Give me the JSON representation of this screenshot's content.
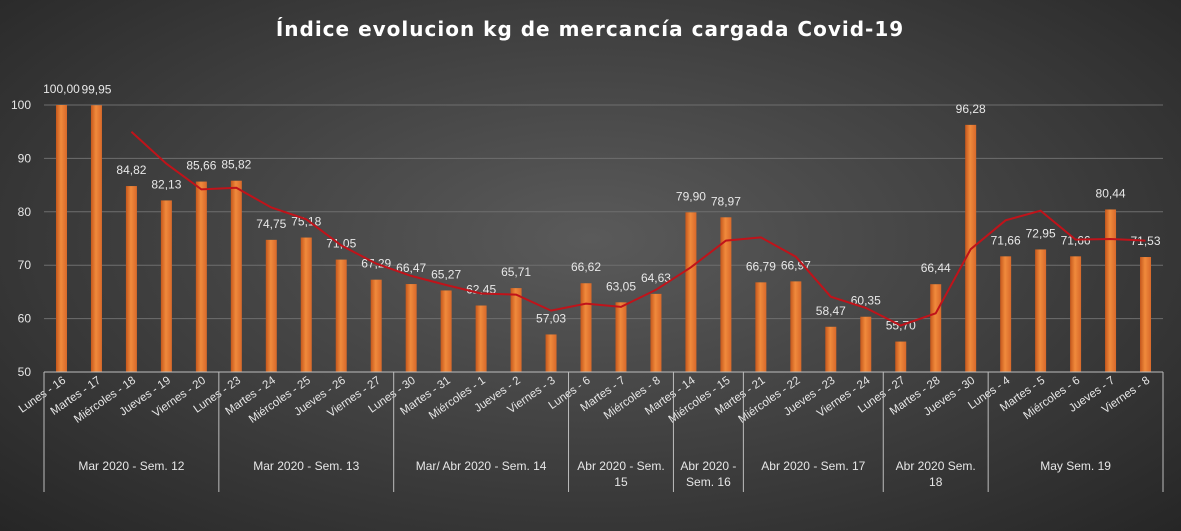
{
  "chart_data": {
    "type": "bar",
    "title": "Índice evolucion kg de mercancía cargada Covid-19",
    "ylim": [
      50,
      100
    ],
    "yticks": [
      50,
      60,
      70,
      80,
      90,
      100
    ],
    "grid": true,
    "bar_color": "#f08a3c",
    "trend_color": "#c0131a",
    "categories": [
      "Lunes - 16",
      "Martes - 17",
      "Miércoles - 18",
      "Jueves - 19",
      "Viernes - 20",
      "Lunes - 23",
      "Martes - 24",
      "Miércoles - 25",
      "Jueves - 26",
      "Viernes - 27",
      "Lunes - 30",
      "Martes - 31",
      "Miércoles - 1",
      "Jueves - 2",
      "Viernes - 3",
      "Lunes - 6",
      "Martes - 7",
      "Miércoles - 8",
      "Martes - 14",
      "Miércoles - 15",
      "Martes - 21",
      "Miércoles - 22",
      "Jueves - 23",
      "Viernes - 24",
      "Lunes - 27",
      "Martes - 28",
      "Jueves - 30",
      "Lunes - 4",
      "Martes - 5",
      "Miércoles - 6",
      "Jueves - 7",
      "Viernes - 8"
    ],
    "values": [
      100.0,
      99.95,
      84.82,
      82.13,
      85.66,
      85.82,
      74.75,
      75.18,
      71.05,
      67.29,
      66.47,
      65.27,
      62.45,
      65.71,
      57.03,
      66.62,
      63.05,
      64.63,
      79.9,
      78.97,
      66.79,
      66.97,
      58.47,
      60.35,
      55.7,
      66.44,
      96.28,
      71.66,
      72.95,
      71.66,
      80.44,
      71.53
    ],
    "data_labels": [
      "100,00",
      "99,95",
      "84,82",
      "82,13",
      "85,66",
      "85,82",
      "74,75",
      "75,18",
      "71,05",
      "67,29",
      "66,47",
      "65,27",
      "62,45",
      "65,71",
      "57,03",
      "66,62",
      "63,05",
      "64,63",
      "79,90",
      "78,97",
      "66,79",
      "66,97",
      "58,47",
      "60,35",
      "55,70",
      "66,44",
      "96,28",
      "71,66",
      "72,95",
      "71,66",
      "80,44",
      "71,53"
    ],
    "trend": [
      null,
      null,
      95.0,
      89.0,
      84.2,
      84.5,
      80.8,
      78.6,
      73.7,
      70.3,
      68.0,
      66.3,
      64.7,
      64.5,
      61.5,
      62.8,
      62.2,
      65.4,
      69.6,
      74.6,
      75.2,
      71.6,
      64.1,
      62.0,
      58.7,
      61.0,
      73.0,
      78.4,
      80.2,
      74.8,
      74.9,
      74.6
    ],
    "groups": [
      {
        "label": [
          "Mar 2020 - Sem. 12"
        ],
        "span": 5
      },
      {
        "label": [
          "Mar 2020 - Sem. 13"
        ],
        "span": 5
      },
      {
        "label": [
          "Mar/ Abr 2020 - Sem. 14"
        ],
        "span": 5
      },
      {
        "label": [
          "Abr 2020 - Sem.",
          "15"
        ],
        "span": 3
      },
      {
        "label": [
          "Abr 2020 -",
          "Sem. 16"
        ],
        "span": 2
      },
      {
        "label": [
          "Abr 2020 - Sem. 17"
        ],
        "span": 4
      },
      {
        "label": [
          "Abr 2020 Sem.",
          "18"
        ],
        "span": 3
      },
      {
        "label": [
          "May Sem. 19"
        ],
        "span": 5
      }
    ]
  }
}
